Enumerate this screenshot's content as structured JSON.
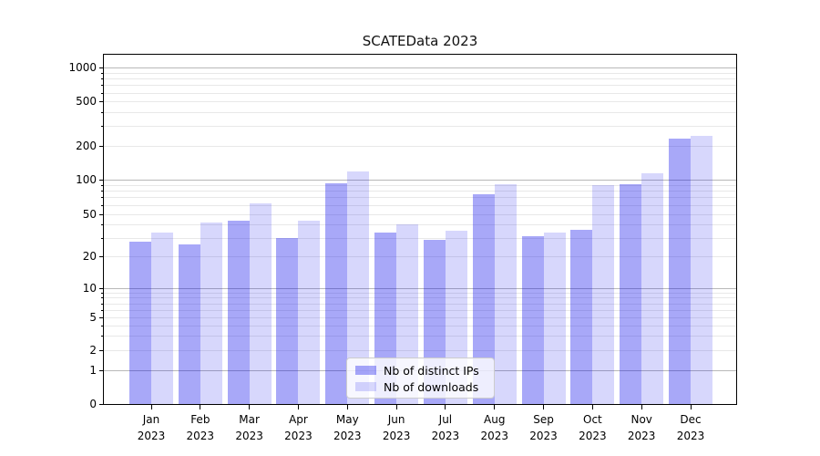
{
  "chart_data": {
    "type": "bar",
    "title": "SCATEData 2023",
    "categories": [
      "Jan 2023",
      "Feb 2023",
      "Mar 2023",
      "Apr 2023",
      "May 2023",
      "Jun 2023",
      "Jul 2023",
      "Aug 2023",
      "Sep 2023",
      "Oct 2023",
      "Nov 2023",
      "Dec 2023"
    ],
    "series": [
      {
        "name": "Nb of distinct IPs",
        "color": "rgba(0,0,235,0.34)",
        "values": [
          28,
          26,
          44,
          30,
          93,
          34,
          29,
          75,
          31,
          36,
          92,
          235
        ]
      },
      {
        "name": "Nb of downloads",
        "color": "rgba(0,0,235,0.155)",
        "values": [
          34,
          42,
          62,
          44,
          120,
          40,
          35,
          92,
          34,
          90,
          115,
          250
        ]
      }
    ],
    "xlabel": "",
    "ylabel": "",
    "yscale": "symlog",
    "y_ticks": [
      0,
      1,
      2,
      5,
      10,
      20,
      50,
      100,
      200,
      500,
      1000
    ],
    "y_minor_ticks": [
      3,
      4,
      6,
      7,
      8,
      9,
      30,
      40,
      60,
      70,
      80,
      90,
      300,
      400,
      600,
      700,
      800,
      900
    ],
    "ylim": [
      0,
      1200
    ],
    "grid": true,
    "legend_position": "lower center (inside plot)",
    "colors": {
      "bar_distinct_ips_on_white": "#a8a8f8",
      "bar_downloads_on_white": "#d8d8fc",
      "major_gridline": "#b8b8b8",
      "minor_gridline": "#e8e8e8",
      "spine": "#000000"
    }
  }
}
